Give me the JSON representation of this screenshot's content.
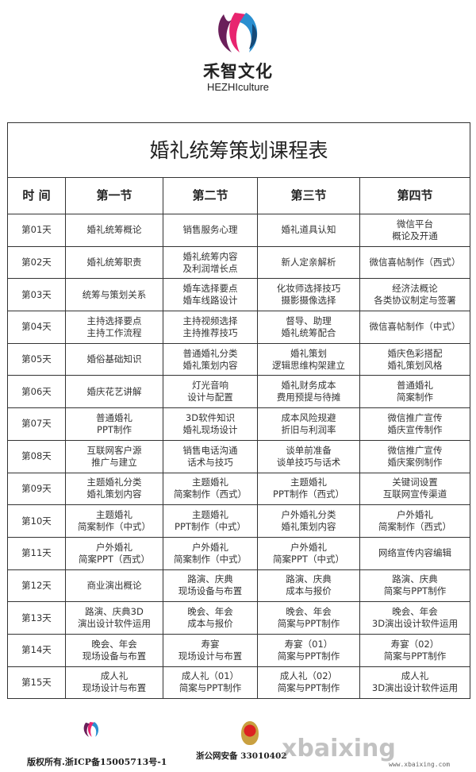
{
  "brand": {
    "name_cn": "禾智文化",
    "name_en": "HEZHIculture"
  },
  "table": {
    "title": "婚礼统筹策划课程表",
    "headers": [
      "时 间",
      "第一节",
      "第二节",
      "第三节",
      "第四节"
    ],
    "rows": [
      [
        "第01天",
        "婚礼统筹概论",
        "销售服务心理",
        "婚礼道具认知",
        "微信平台\n概论及开通"
      ],
      [
        "第02天",
        "婚礼统筹职责",
        "婚礼统筹内容\n及利润增长点",
        "新人定亲解析",
        "微信喜帖制作（西式）"
      ],
      [
        "第03天",
        "统筹与策划关系",
        "婚车选择要点\n婚车线路设计",
        "化妆师选择技巧\n摄影摄像选择",
        "经济法概论\n各类协议制定与签署"
      ],
      [
        "第04天",
        "主持选择要点\n主持工作流程",
        "主持视频选择\n主持推荐技巧",
        "督导、助理\n婚礼统筹配合",
        "微信喜帖制作（中式）"
      ],
      [
        "第05天",
        "婚俗基础知识",
        "普通婚礼分类\n婚礼策划内容",
        "婚礼策划\n逻辑思维构架建立",
        "婚庆色彩搭配\n婚礼策划风格"
      ],
      [
        "第06天",
        "婚庆花艺讲解",
        "灯光音响\n设计与配置",
        "婚礼财务成本\n费用预提与待摊",
        "普通婚礼\n简案制作"
      ],
      [
        "第07天",
        "普通婚礼\nPPT制作",
        "3D软件知识\n婚礼现场设计",
        "成本风险规避\n折旧与利润率",
        "微信推广宣传\n婚庆宣传制作"
      ],
      [
        "第08天",
        "互联网客户源\n推广与建立",
        "销售电话沟通\n话术与技巧",
        "谈单前准备\n谈单技巧与话术",
        "微信推广宣传\n婚庆案例制作"
      ],
      [
        "第09天",
        "主题婚礼分类\n婚礼策划内容",
        "主题婚礼\n简案制作（西式）",
        "主题婚礼\nPPT制作（西式）",
        "关键词设置\n互联网宣传渠道"
      ],
      [
        "第10天",
        "主题婚礼\n简案制作（中式）",
        "主题婚礼\nPPT制作（中式）",
        "户外婚礼分类\n婚礼策划内容",
        "户外婚礼\n简案制作（西式）"
      ],
      [
        "第11天",
        "户外婚礼\n简案PPT（西式）",
        "户外婚礼\n简案制作（中式）",
        "户外婚礼\n简案PPT（中式）",
        "网络宣传内容编辑"
      ],
      [
        "第12天",
        "商业演出概论",
        "路演、庆典\n现场设备与布置",
        "路演、庆典\n成本与报价",
        "路演、庆典\n简案与PPT制作"
      ],
      [
        "第13天",
        "路演、庆典3D\n演出设计软件运用",
        "晚会、年会\n成本与报价",
        "晚会、年会\n简案与PPT制作",
        "晚会、年会\n3D演出设计软件运用"
      ],
      [
        "第14天",
        "晚会、年会\n现场设备与布置",
        "寿宴\n现场设计与布置",
        "寿宴（01）\n简案与PPT制作",
        "寿宴（02）\n简案与PPT制作"
      ],
      [
        "第15天",
        "成人礼\n现场设计与布置",
        "成人礼（01）\n简案与PPT制作",
        "成人礼（02）\n简案与PPT制作",
        "成人礼\n3D演出设计软件运用"
      ]
    ]
  },
  "footer": {
    "copyright": "版权所有.浙ICP备15005713号-1",
    "police_record": "浙公网安备 33010402",
    "watermark": "xbaixing",
    "watermark_url": "www.xbaixing.com"
  }
}
